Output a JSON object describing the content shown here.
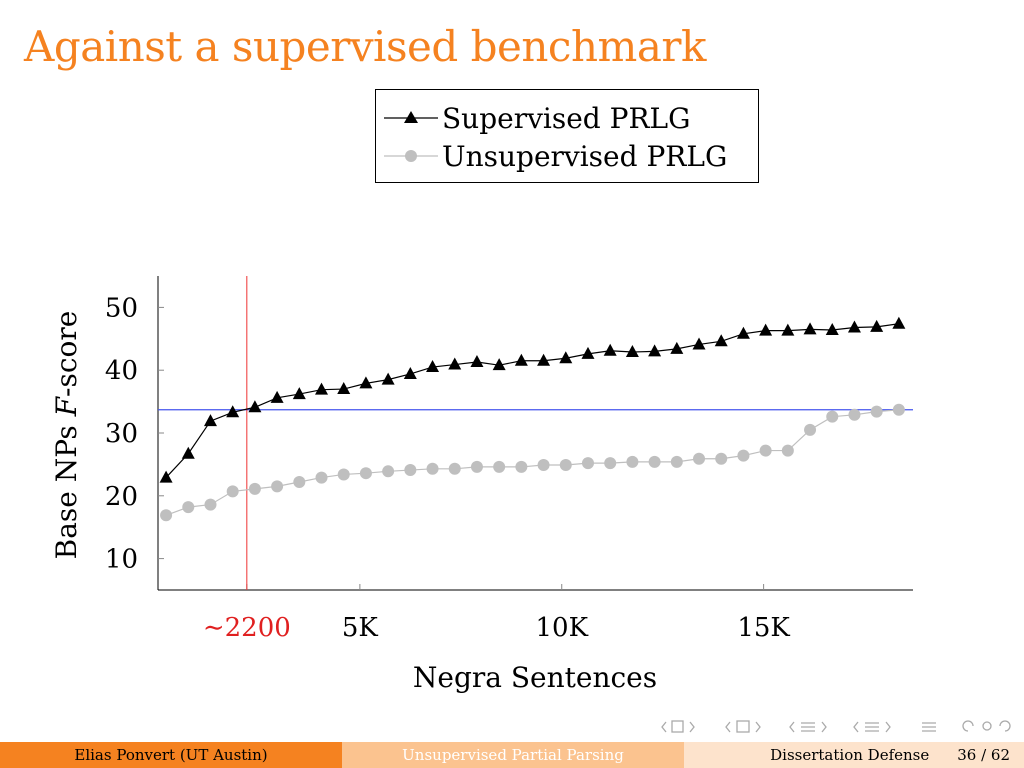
{
  "slide": {
    "title": "Against a supervised benchmark"
  },
  "footer": {
    "author": "Elias Ponvert  (UT Austin)",
    "talk": "Unsupervised Partial Parsing",
    "event": "Dissertation Defense",
    "page": "36 / 62"
  },
  "colors": {
    "accent": "#f58220",
    "supervised": "#000000",
    "unsupervised": "#bfbfbf",
    "hline": "#4455ee",
    "vline": "#ee3333"
  },
  "chart_data": {
    "type": "line",
    "xlabel": "Negra Sentences",
    "ylabel_prefix": "Base NPs ",
    "ylabel_italic": "F",
    "ylabel_suffix": "-score",
    "xlim": [
      0,
      18700
    ],
    "ylim": [
      5,
      55
    ],
    "yticks": [
      10,
      20,
      30,
      40,
      50
    ],
    "xticks": [
      {
        "value": 2200,
        "label": "∼2200",
        "highlight": true
      },
      {
        "value": 5000,
        "label": "5K"
      },
      {
        "value": 10000,
        "label": "10K"
      },
      {
        "value": 15000,
        "label": "15K"
      }
    ],
    "reference_lines": {
      "horizontal_y": 33.7,
      "vertical_x": 2200
    },
    "legend_position": "top-right",
    "series": [
      {
        "name": "Supervised PRLG",
        "marker": "triangle",
        "x": [
          200,
          750,
          1300,
          1850,
          2400,
          2950,
          3500,
          4050,
          4600,
          5150,
          5700,
          6250,
          6800,
          7350,
          7900,
          8450,
          9000,
          9550,
          10100,
          10650,
          11200,
          11750,
          12300,
          12850,
          13400,
          13950,
          14500,
          15050,
          15600,
          16150,
          16700,
          17250,
          17800,
          18350
        ],
        "values": [
          22.9,
          26.7,
          31.9,
          33.3,
          34.1,
          35.6,
          36.2,
          36.9,
          37.0,
          37.9,
          38.5,
          39.4,
          40.5,
          40.9,
          41.3,
          40.8,
          41.5,
          41.5,
          41.9,
          42.6,
          43.1,
          42.9,
          43.0,
          43.4,
          44.1,
          44.6,
          45.8,
          46.3,
          46.3,
          46.5,
          46.4,
          46.8,
          46.9,
          47.4
        ]
      },
      {
        "name": "Unsupervised PRLG",
        "marker": "circle",
        "x": [
          200,
          750,
          1300,
          1850,
          2400,
          2950,
          3500,
          4050,
          4600,
          5150,
          5700,
          6250,
          6800,
          7350,
          7900,
          8450,
          9000,
          9550,
          10100,
          10650,
          11200,
          11750,
          12300,
          12850,
          13400,
          13950,
          14500,
          15050,
          15600,
          16150,
          16700,
          17250,
          17800,
          18350
        ],
        "values": [
          16.9,
          18.2,
          18.6,
          20.7,
          21.1,
          21.5,
          22.2,
          22.9,
          23.4,
          23.6,
          23.9,
          24.1,
          24.3,
          24.3,
          24.6,
          24.6,
          24.6,
          24.9,
          24.9,
          25.2,
          25.2,
          25.4,
          25.4,
          25.4,
          25.9,
          25.9,
          26.4,
          27.2,
          27.2,
          30.5,
          32.6,
          32.9,
          33.4,
          33.7
        ]
      }
    ]
  }
}
